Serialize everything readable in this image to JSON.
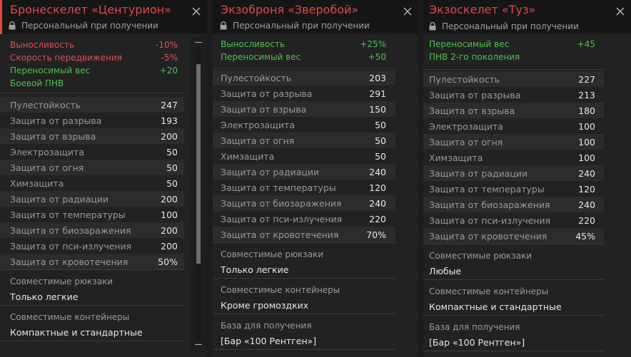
{
  "panels": [
    {
      "title": "Бронескелет «Центурион»",
      "lock_text": "Персональный при получении",
      "effects": [
        {
          "name": "Выносливость",
          "value": "-10%",
          "color": "red"
        },
        {
          "name": "Скорость передвижения",
          "value": "-5%",
          "color": "red"
        },
        {
          "name": "Переносимый вес",
          "value": "+20",
          "color": "green"
        },
        {
          "name": "Боевой ПНВ",
          "value": "",
          "color": "green"
        }
      ],
      "stats": [
        {
          "name": "Пулестойкость",
          "value": "247"
        },
        {
          "name": "Защита от разрыва",
          "value": "193"
        },
        {
          "name": "Защита от взрыва",
          "value": "200"
        },
        {
          "name": "Электрозащита",
          "value": "50"
        },
        {
          "name": "Защита от огня",
          "value": "50"
        },
        {
          "name": "Химзащита",
          "value": "50"
        },
        {
          "name": "Защита от радиации",
          "value": "200"
        },
        {
          "name": "Защита от температуры",
          "value": "100"
        },
        {
          "name": "Защита от биозаражения",
          "value": "200"
        },
        {
          "name": "Защита от пси-излучения",
          "value": "200"
        },
        {
          "name": "Защита от кровотечения",
          "value": "50%"
        }
      ],
      "info": [
        {
          "label": "Совместимые рюкзаки",
          "value": "Только легкие"
        },
        {
          "label": "Совместимые контейнеры",
          "value": "Компактные и стандартные"
        }
      ],
      "scroll_position": 0.18
    },
    {
      "title": "Экзоброня «Зверобой»",
      "lock_text": "Персональный при получении",
      "effects": [
        {
          "name": "Выносливость",
          "value": "+25%",
          "color": "green"
        },
        {
          "name": "Переносимый вес",
          "value": "+50",
          "color": "green"
        }
      ],
      "stats": [
        {
          "name": "Пулестойкость",
          "value": "203"
        },
        {
          "name": "Защита от разрыва",
          "value": "291"
        },
        {
          "name": "Защита от взрыва",
          "value": "150"
        },
        {
          "name": "Электрозащита",
          "value": "50"
        },
        {
          "name": "Защита от огня",
          "value": "50"
        },
        {
          "name": "Химзащита",
          "value": "50"
        },
        {
          "name": "Защита от радиации",
          "value": "240"
        },
        {
          "name": "Защита от температуры",
          "value": "120"
        },
        {
          "name": "Защита от биозаражения",
          "value": "240"
        },
        {
          "name": "Защита от пси-излучения",
          "value": "220"
        },
        {
          "name": "Защита от кровотечения",
          "value": "70%"
        }
      ],
      "info": [
        {
          "label": "Совместимые рюкзаки",
          "value": "Только легкие"
        },
        {
          "label": "Совместимые контейнеры",
          "value": "Кроме громоздких"
        },
        {
          "label": "База для получения",
          "value": "[Бар «100 Рентген»]"
        }
      ],
      "scroll_position": 0.2
    },
    {
      "title": "Экзоскелет «Туз»",
      "lock_text": "Персональный при получении",
      "effects": [
        {
          "name": "Переносимый вес",
          "value": "+45",
          "color": "green"
        },
        {
          "name": "ПНВ 2-го поколения",
          "value": "",
          "color": "green"
        }
      ],
      "stats": [
        {
          "name": "Пулестойкость",
          "value": "227"
        },
        {
          "name": "Защита от разрыва",
          "value": "213"
        },
        {
          "name": "Защита от взрыва",
          "value": "180"
        },
        {
          "name": "Электрозащита",
          "value": "100"
        },
        {
          "name": "Защита от огня",
          "value": "100"
        },
        {
          "name": "Химзащита",
          "value": "100"
        },
        {
          "name": "Защита от радиации",
          "value": "240"
        },
        {
          "name": "Защита от температуры",
          "value": "120"
        },
        {
          "name": "Защита от биозаражения",
          "value": "240"
        },
        {
          "name": "Защита от пси-излучения",
          "value": "220"
        },
        {
          "name": "Защита от кровотечения",
          "value": "45%"
        }
      ],
      "info": [
        {
          "label": "Совместимые рюкзаки",
          "value": "Любые"
        },
        {
          "label": "Совместимые контейнеры",
          "value": "Компактные и стандартные"
        },
        {
          "label": "База для получения",
          "value": "[Бар «100 Рентген»]"
        }
      ],
      "scroll_position": 0.19
    }
  ],
  "colors": {
    "title": "#e04848",
    "negative": "#e05050",
    "positive": "#4cc24c",
    "panel_bg": "#222222",
    "header_bg": "#161616"
  },
  "icons": {
    "close": "close-icon",
    "lock": "lock-icon"
  }
}
